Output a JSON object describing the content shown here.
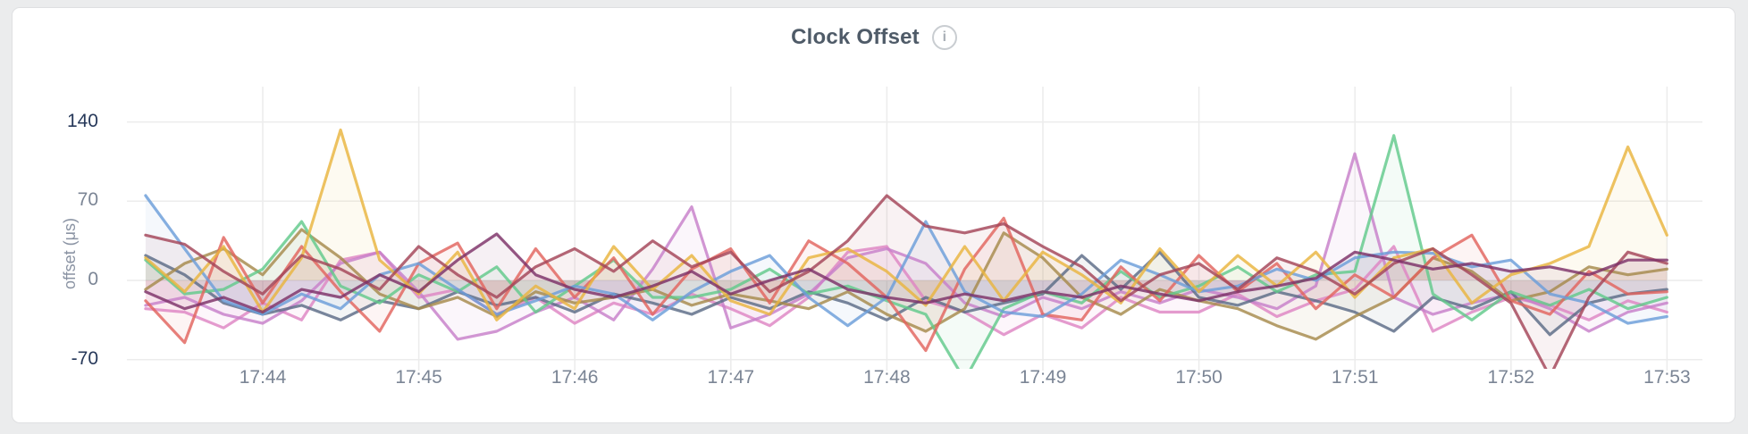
{
  "header": {
    "info_icon": "info-icon",
    "info_glyph": "i"
  },
  "chart_data": {
    "type": "line",
    "title": "Clock Offset",
    "xlabel": "",
    "ylabel": "offset (μs)",
    "ylim": [
      -70,
      140
    ],
    "grid": true,
    "legend": "none",
    "x_ticks": [
      "17:44",
      "17:45",
      "17:46",
      "17:47",
      "17:48",
      "17:49",
      "17:50",
      "17:51",
      "17:52",
      "17:53"
    ],
    "y_ticks": [
      140,
      70,
      0,
      -70
    ],
    "x_start": "17:43:15",
    "x_interval_seconds": 15,
    "unit": "μs",
    "series": [
      {
        "name": "series-pink",
        "color": "#de85c3",
        "values": [
          -25,
          -28,
          -42,
          -20,
          -35,
          18,
          25,
          -15,
          -8,
          -30,
          -15,
          -38,
          -20,
          -30,
          -12,
          -25,
          -40,
          -15,
          25,
          30,
          -18,
          -28,
          -48,
          -30,
          -42,
          -15,
          -28,
          -28,
          -12,
          -32,
          -18,
          -8,
          30,
          -45,
          -28,
          -15,
          -22,
          -35,
          -18,
          -28
        ]
      },
      {
        "name": "series-orchid",
        "color": "#c77fc9",
        "values": [
          -22,
          -15,
          -30,
          -38,
          -18,
          15,
          25,
          -10,
          -52,
          -45,
          -28,
          -15,
          -35,
          10,
          65,
          -42,
          -30,
          -12,
          20,
          28,
          15,
          -20,
          -32,
          -15,
          -25,
          -10,
          -20,
          -8,
          -15,
          -25,
          -5,
          112,
          -15,
          -30,
          -20,
          -12,
          -25,
          -45,
          -28,
          -20
        ]
      },
      {
        "name": "series-slate",
        "color": "#5c6b86",
        "values": [
          22,
          5,
          -20,
          -30,
          -22,
          -35,
          -18,
          -25,
          -10,
          -22,
          -15,
          -28,
          -12,
          -20,
          -30,
          -15,
          -25,
          -10,
          -20,
          -35,
          -15,
          -28,
          -20,
          -12,
          22,
          -8,
          25,
          -15,
          -22,
          -10,
          -18,
          -28,
          -45,
          -15,
          -25,
          -10,
          -48,
          -20,
          -12,
          -8
        ]
      },
      {
        "name": "series-khaki",
        "color": "#a68a4c",
        "values": [
          -8,
          15,
          28,
          5,
          45,
          20,
          -12,
          -25,
          -15,
          -32,
          -10,
          -20,
          -15,
          -8,
          -22,
          -12,
          -18,
          -25,
          -10,
          -30,
          -45,
          -25,
          42,
          20,
          -15,
          -30,
          -8,
          -18,
          -25,
          -40,
          -52,
          -32,
          -15,
          20,
          8,
          -18,
          -10,
          12,
          5,
          10
        ]
      },
      {
        "name": "series-green",
        "color": "#62c98b",
        "values": [
          18,
          -12,
          -8,
          10,
          52,
          -5,
          -20,
          5,
          -10,
          12,
          -28,
          -5,
          18,
          -15,
          -15,
          -8,
          10,
          -12,
          -5,
          -18,
          -30,
          -88,
          -25,
          -10,
          -20,
          8,
          -15,
          -5,
          12,
          -10,
          5,
          8,
          128,
          -12,
          -35,
          -10,
          -22,
          -8,
          -25,
          -15
        ]
      },
      {
        "name": "series-red",
        "color": "#e2645e",
        "values": [
          -18,
          -55,
          38,
          -20,
          30,
          -10,
          -45,
          15,
          33,
          -25,
          28,
          -15,
          20,
          -30,
          10,
          28,
          -20,
          35,
          15,
          -15,
          -62,
          10,
          55,
          -30,
          -35,
          12,
          -18,
          22,
          -10,
          15,
          -25,
          5,
          -15,
          20,
          40,
          -18,
          -30,
          8,
          -12,
          -10
        ]
      },
      {
        "name": "series-blue",
        "color": "#6b9ed9",
        "values": [
          75,
          28,
          -18,
          -30,
          -12,
          -25,
          5,
          15,
          -8,
          -30,
          -18,
          -5,
          -12,
          -35,
          -10,
          8,
          22,
          -15,
          -40,
          -15,
          52,
          -10,
          -28,
          -32,
          -12,
          18,
          5,
          -10,
          -5,
          10,
          0,
          20,
          25,
          24,
          12,
          18,
          -12,
          -20,
          -38,
          -32
        ]
      },
      {
        "name": "series-gold",
        "color": "#e9b43e",
        "values": [
          20,
          -10,
          30,
          -28,
          20,
          133,
          18,
          -12,
          25,
          -35,
          -5,
          -25,
          30,
          -8,
          22,
          -18,
          -30,
          20,
          28,
          8,
          -22,
          30,
          -18,
          25,
          5,
          -20,
          28,
          -10,
          22,
          -5,
          25,
          -15,
          20,
          28,
          -20,
          5,
          15,
          30,
          118,
          40
        ]
      },
      {
        "name": "series-wine",
        "color": "#a34458",
        "values": [
          40,
          32,
          8,
          -12,
          22,
          10,
          -8,
          30,
          5,
          -15,
          12,
          28,
          8,
          35,
          12,
          25,
          -10,
          8,
          35,
          75,
          48,
          42,
          50,
          30,
          12,
          -18,
          5,
          15,
          -8,
          20,
          8,
          -12,
          15,
          28,
          5,
          -20,
          -85,
          -15,
          25,
          15
        ]
      },
      {
        "name": "series-plum",
        "color": "#7d3168",
        "values": [
          -10,
          -25,
          -15,
          -28,
          -8,
          -15,
          5,
          -10,
          18,
          41,
          5,
          -8,
          -15,
          -5,
          8,
          -12,
          0,
          10,
          -8,
          -15,
          -20,
          -12,
          -18,
          -10,
          -15,
          -5,
          -12,
          -18,
          -10,
          -5,
          2,
          25,
          18,
          10,
          15,
          8,
          12,
          5,
          18,
          18
        ]
      }
    ]
  }
}
